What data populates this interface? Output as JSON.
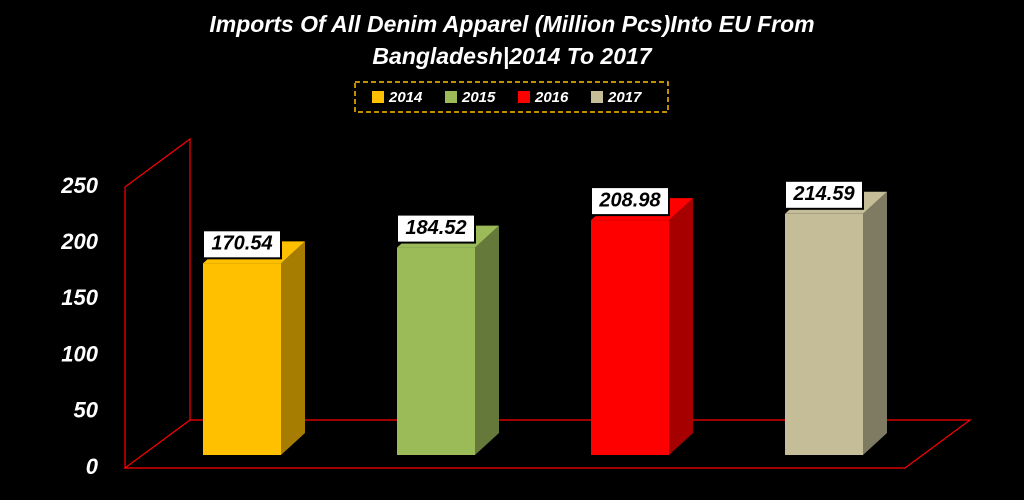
{
  "chart_data": {
    "type": "bar",
    "title": "Imports Of All Denim Apparel (Million Pcs)Into EU From Bangladesh|2014 To 2017",
    "series": [
      {
        "name": "2014",
        "color": "#ffc000",
        "values": [
          170.54
        ]
      },
      {
        "name": "2015",
        "color": "#9bbb59",
        "values": [
          184.52
        ]
      },
      {
        "name": "2016",
        "color": "#ff0000",
        "values": [
          208.98
        ]
      },
      {
        "name": "2017",
        "color": "#c4bd97",
        "values": [
          214.59
        ]
      }
    ],
    "ylim": [
      0,
      250
    ],
    "yticks": [
      0,
      50,
      100,
      150,
      200,
      250
    ],
    "axis_color": "#ff0000",
    "legend": "top"
  }
}
